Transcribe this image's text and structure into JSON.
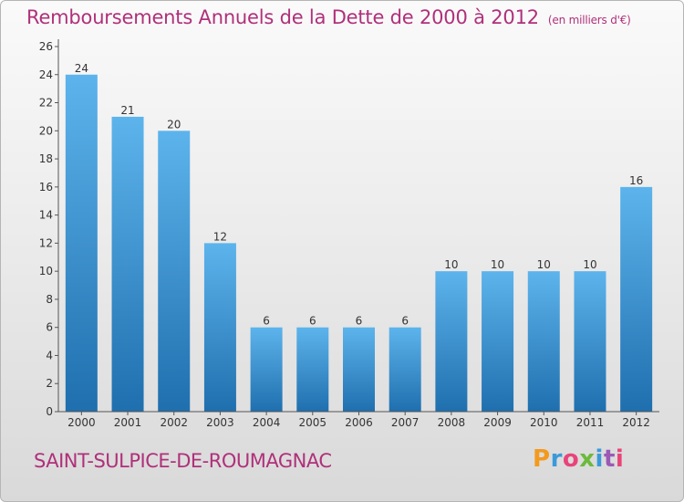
{
  "chart_data": {
    "type": "bar",
    "title": "Remboursements Annuels de la Dette de 2000 à 2012",
    "unit_note": "(en milliers d'€)",
    "categories": [
      "2000",
      "2001",
      "2002",
      "2003",
      "2004",
      "2005",
      "2006",
      "2007",
      "2008",
      "2009",
      "2010",
      "2011",
      "2012"
    ],
    "values": [
      24,
      21,
      20,
      12,
      6,
      6,
      6,
      6,
      10,
      10,
      10,
      10,
      16
    ],
    "yticks": [
      0,
      2,
      4,
      6,
      8,
      10,
      12,
      14,
      16,
      18,
      20,
      22,
      24,
      26
    ],
    "ylim": [
      0,
      26
    ],
    "xlabel": "",
    "ylabel": "",
    "grid": false,
    "colors": {
      "bar_top": "#5db4ec",
      "bar_bottom": "#1f6fae",
      "axis": "#555555"
    }
  },
  "footer": {
    "commune": "SAINT-SULPICE-DE-ROUMAGNAC",
    "logo_letters": [
      "P",
      "r",
      "o",
      "x",
      "i",
      "t",
      "i"
    ]
  }
}
